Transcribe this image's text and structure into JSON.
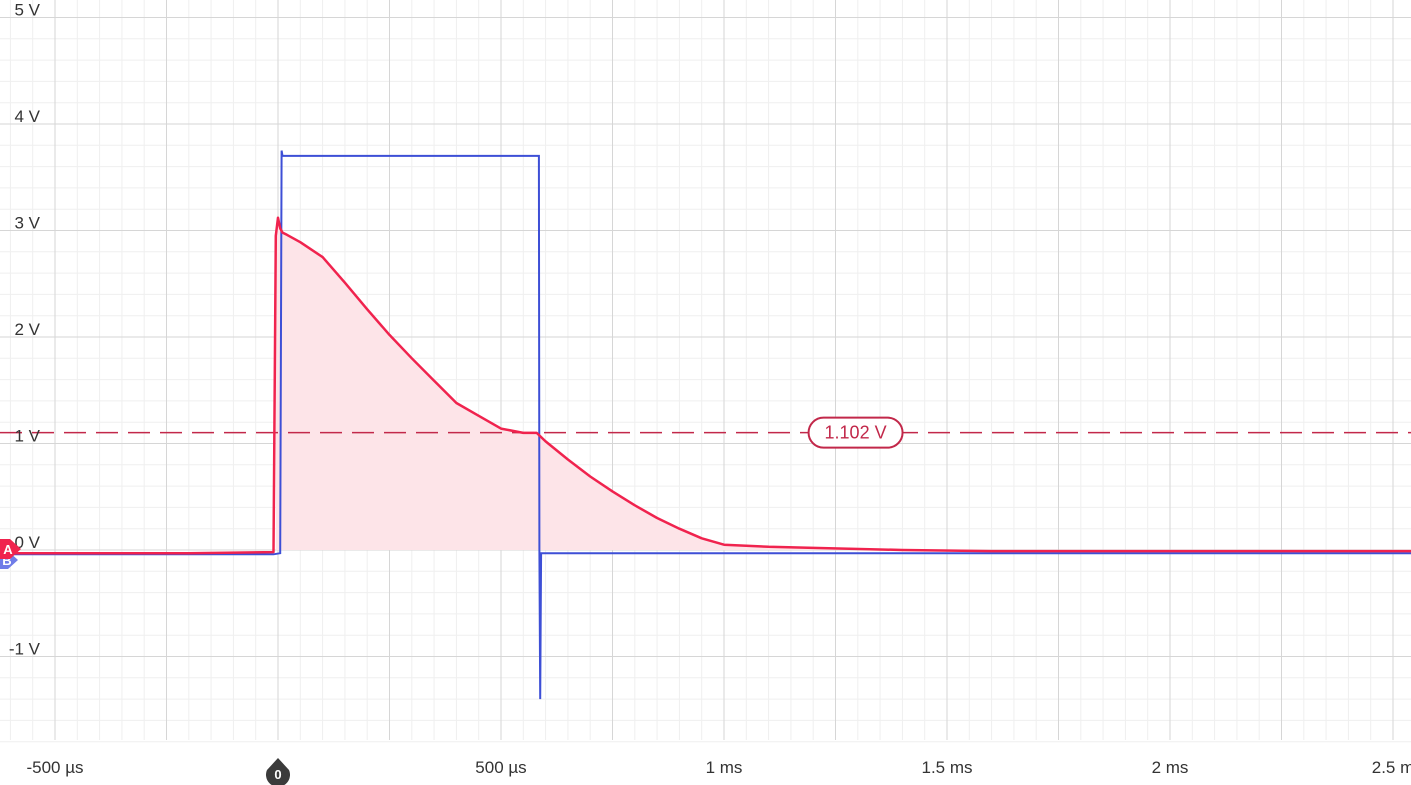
{
  "chart_data": {
    "type": "line",
    "title": "",
    "xlabel": "",
    "ylabel": "",
    "x_unit": "ms",
    "xlim": [
      -0.61,
      2.56
    ],
    "ylim": [
      -1.9,
      5.1
    ],
    "grid": true,
    "x_ticks": [
      {
        "value": -0.5,
        "label": "-500 µs"
      },
      {
        "value": 0,
        "label": ""
      },
      {
        "value": 0.5,
        "label": "500 µs"
      },
      {
        "value": 1.0,
        "label": "1 ms"
      },
      {
        "value": 1.5,
        "label": "1.5 ms"
      },
      {
        "value": 2.0,
        "label": "2 ms"
      },
      {
        "value": 2.5,
        "label": "2.5 m"
      }
    ],
    "y_ticks": [
      {
        "value": 5,
        "label": "5 V"
      },
      {
        "value": 4,
        "label": "4 V"
      },
      {
        "value": 3,
        "label": "3 V"
      },
      {
        "value": 2,
        "label": "2 V"
      },
      {
        "value": 1,
        "label": "1 V"
      },
      {
        "value": 0,
        "label": "0 V"
      },
      {
        "value": -1,
        "label": "-1 V"
      }
    ],
    "series": [
      {
        "channel": "A",
        "color": "#f0234e",
        "fill": "#fde4e8",
        "x": [
          -0.61,
          -0.4,
          -0.2,
          -0.01,
          -0.005,
          0.0,
          0.005,
          0.01,
          0.02,
          0.05,
          0.1,
          0.15,
          0.2,
          0.25,
          0.3,
          0.35,
          0.4,
          0.45,
          0.5,
          0.55,
          0.58,
          0.6,
          0.65,
          0.7,
          0.75,
          0.8,
          0.85,
          0.9,
          0.95,
          1.0,
          1.05,
          1.1,
          1.2,
          1.4,
          1.6,
          1.8,
          2.0,
          2.2,
          2.4,
          2.56
        ],
        "values": [
          -0.03,
          -0.03,
          -0.03,
          -0.02,
          2.95,
          3.12,
          3.02,
          2.98,
          2.96,
          2.89,
          2.75,
          2.51,
          2.26,
          2.02,
          1.8,
          1.59,
          1.38,
          1.26,
          1.14,
          1.1,
          1.1,
          1.02,
          0.85,
          0.69,
          0.55,
          0.42,
          0.3,
          0.2,
          0.11,
          0.05,
          0.04,
          0.03,
          0.02,
          0.0,
          -0.01,
          -0.01,
          -0.01,
          -0.01,
          -0.01,
          -0.01
        ]
      },
      {
        "channel": "B",
        "color": "#3d4fd6",
        "x": [
          -0.61,
          -0.01,
          0.005,
          0.008,
          0.01,
          0.1,
          0.3,
          0.5,
          0.585,
          0.586,
          0.588,
          0.59,
          0.6,
          1.0,
          1.5,
          2.0,
          2.56
        ],
        "values": [
          -0.04,
          -0.04,
          -0.03,
          3.75,
          3.7,
          3.7,
          3.7,
          3.7,
          3.7,
          0.0,
          -1.4,
          -0.03,
          -0.03,
          -0.03,
          -0.03,
          -0.03,
          -0.03
        ]
      }
    ],
    "cursor": {
      "value": 1.102,
      "label": "1.102 V",
      "color": "#c2284a",
      "label_x": 1.295
    },
    "markers": {
      "trigger_label": "0",
      "trigger_x": 0,
      "channel_a_label": "A",
      "channel_b_label": "B",
      "channel_a_color": "#f0234e",
      "channel_b_color": "#6f7ce8",
      "trigger_color": "#3b3b3b"
    },
    "grid_colors": {
      "major": "#d6d6d6",
      "minor": "#efefef"
    }
  }
}
